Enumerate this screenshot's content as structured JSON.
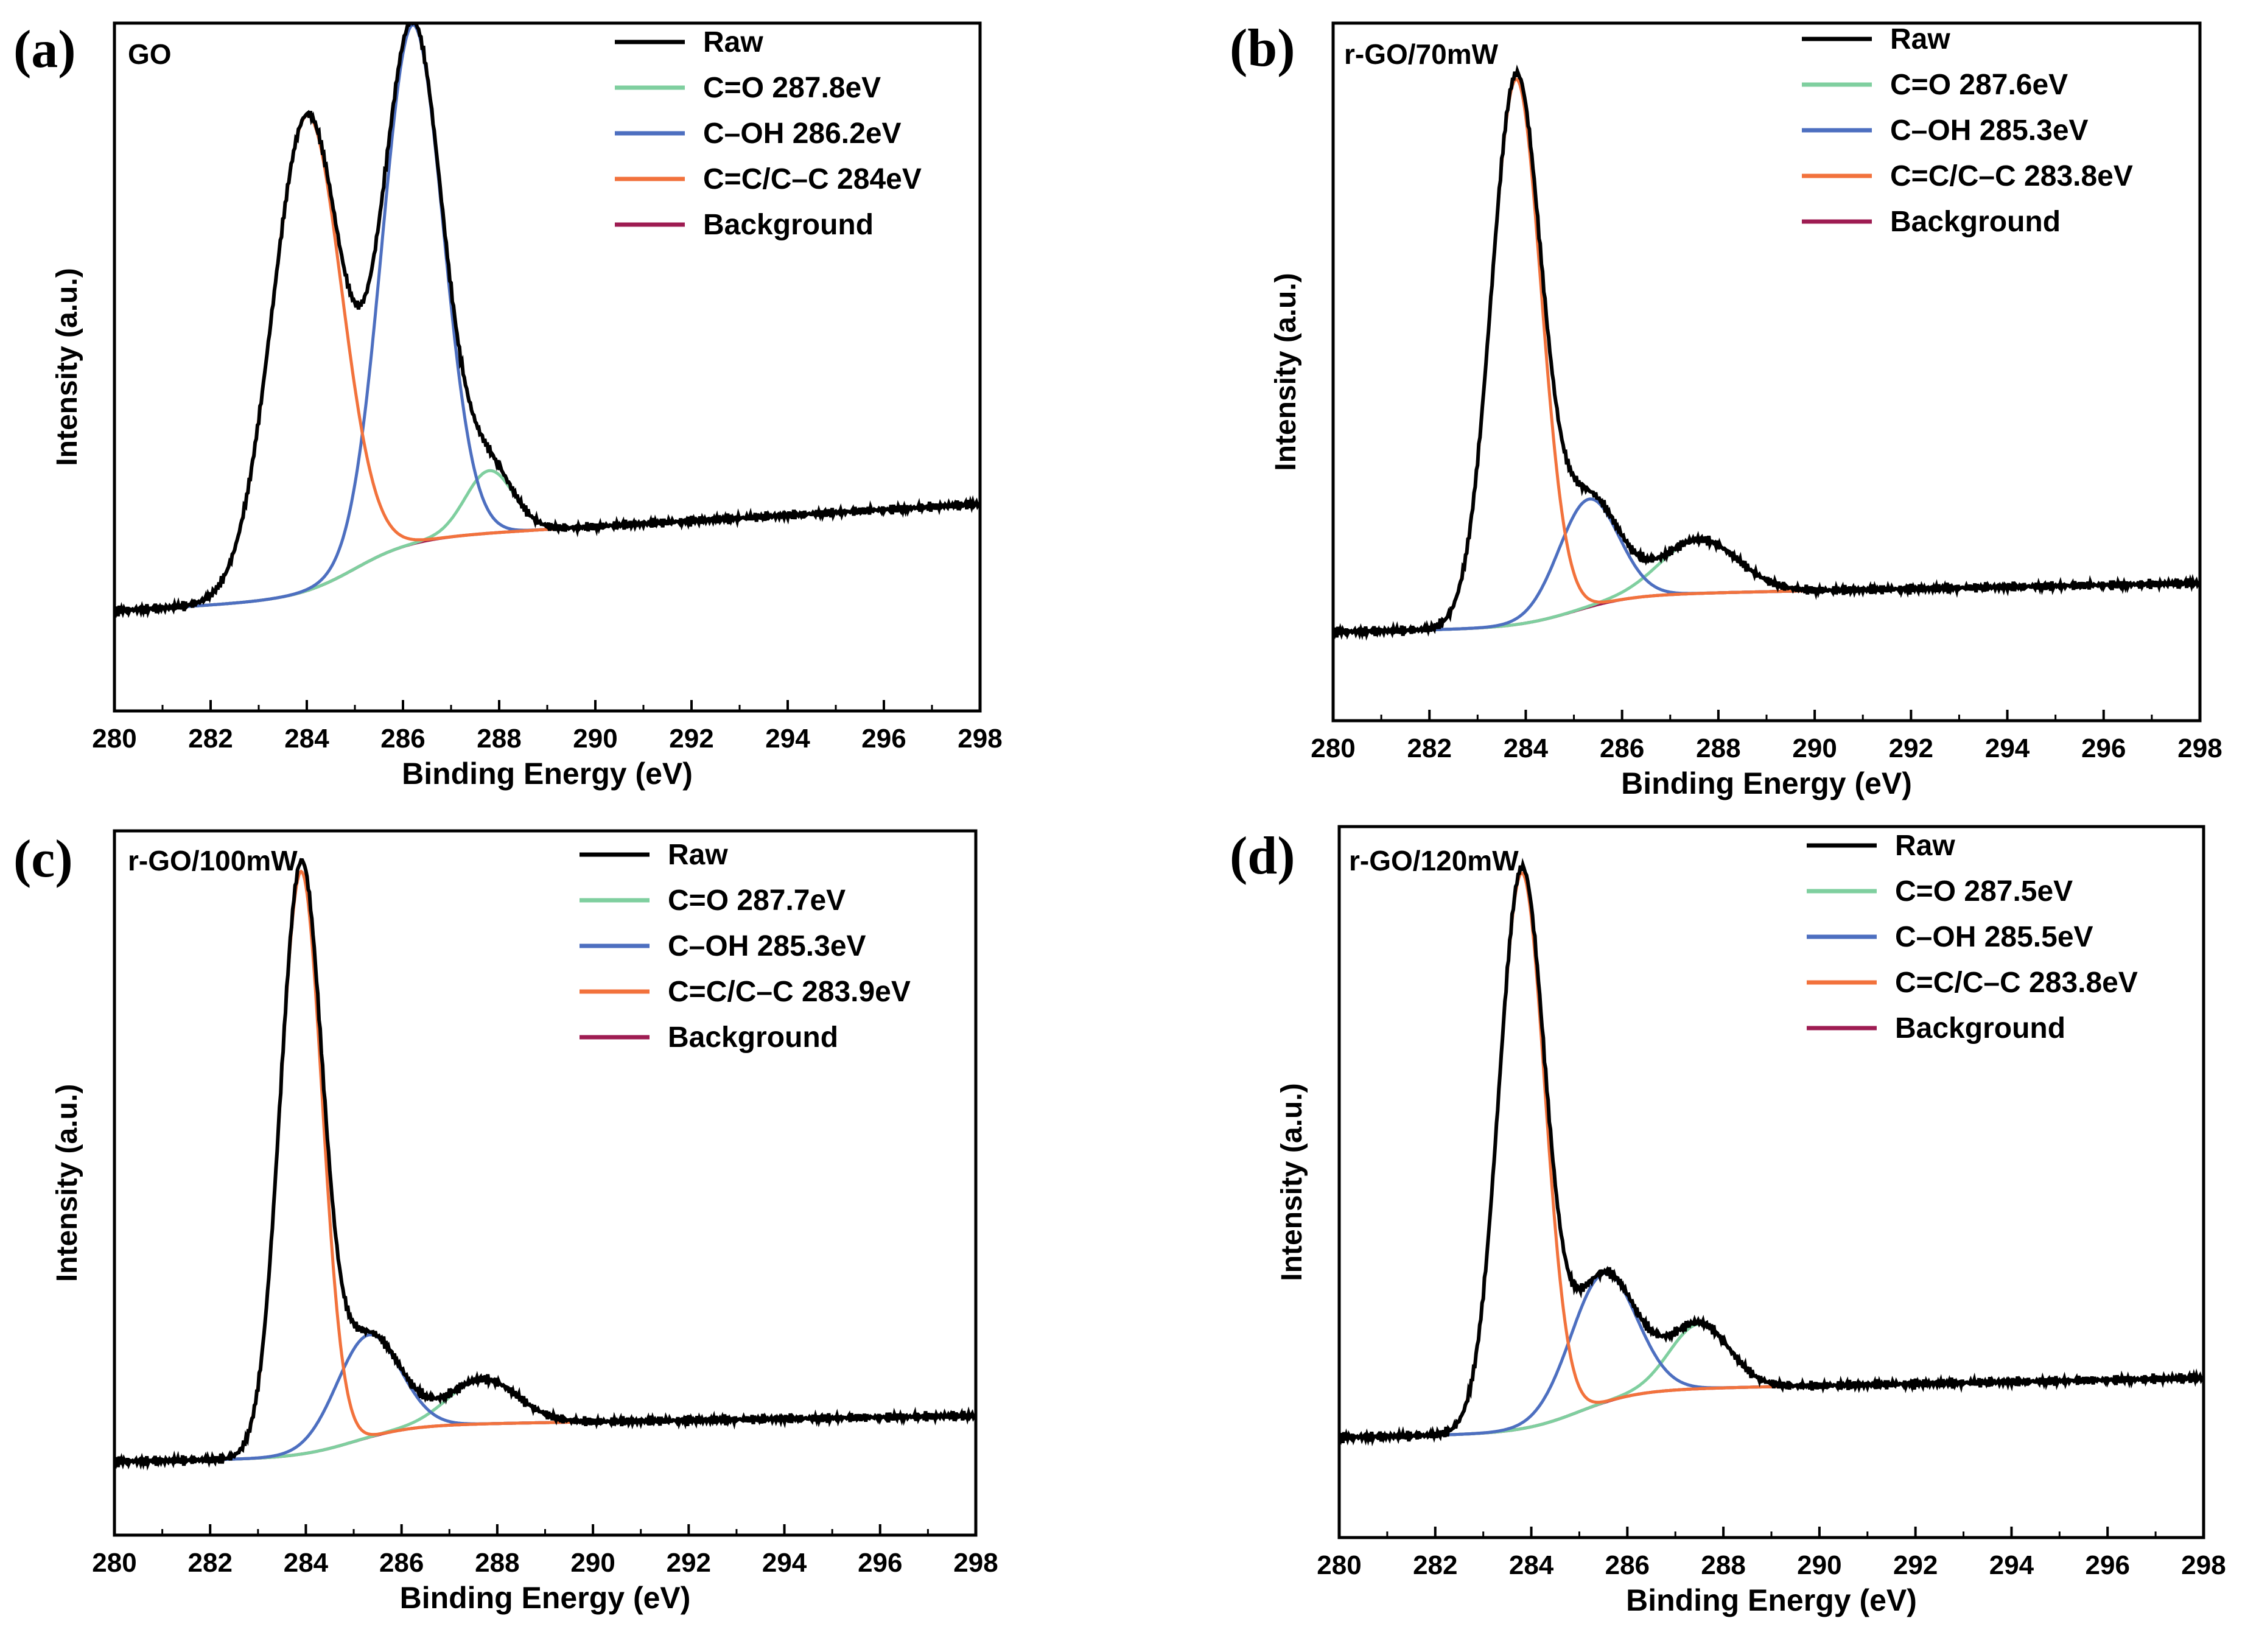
{
  "figure": {
    "colors": {
      "raw": "#000000",
      "c_o": "#7fcf9f",
      "c_oh": "#4d6fc0",
      "cc": "#f2723c",
      "background": "#9e1c52",
      "axis": "#000000"
    }
  },
  "chart_data": [
    {
      "type": "line",
      "panel_label": "(a)",
      "sample": "GO",
      "xlabel": "Binding Energy (eV)",
      "ylabel": "Intensity (a.u.)",
      "xlim": [
        280,
        298
      ],
      "ylim": [
        -0.05,
        1.05
      ],
      "xticks": [
        "280",
        "282",
        "284",
        "286",
        "288",
        "290",
        "292",
        "294",
        "296",
        "298"
      ],
      "legend": [
        "Raw",
        "C=O 287.8eV",
        "C–OH 286.2eV",
        "C=C/C–C 284eV",
        "Background"
      ],
      "background": {
        "start": 0.11,
        "end": 0.2,
        "center": 285.0,
        "width": 0.6,
        "slope": 0.0045
      },
      "peaks": [
        {
          "name": "C=C/C–C",
          "center": 284.0,
          "height": 0.76,
          "sigma": 0.72
        },
        {
          "name": "C–OH",
          "center": 286.2,
          "height": 0.83,
          "sigma": 0.63
        },
        {
          "name": "C=O",
          "center": 287.8,
          "height": 0.1,
          "sigma": 0.5
        }
      ]
    },
    {
      "type": "line",
      "panel_label": "(b)",
      "sample": "r-GO/70mW",
      "xlabel": "Binding Energy (eV)",
      "ylabel": "Intensity (a.u.)",
      "xlim": [
        280,
        298
      ],
      "ylim": [
        -0.05,
        1.05
      ],
      "xticks": [
        "280",
        "282",
        "284",
        "286",
        "288",
        "290",
        "292",
        "294",
        "296",
        "298"
      ],
      "legend": [
        "Raw",
        "C=O 287.6eV",
        "C–OH 285.3eV",
        "C=C/C–C 283.8eV",
        "Background"
      ],
      "background": {
        "start": 0.09,
        "end": 0.14,
        "center": 285.0,
        "width": 0.6,
        "slope": 0.0015
      },
      "peaks": [
        {
          "name": "C=C/C–C",
          "center": 283.8,
          "height": 0.86,
          "sigma": 0.52
        },
        {
          "name": "C–OH",
          "center": 285.3,
          "height": 0.17,
          "sigma": 0.62
        },
        {
          "name": "C=O",
          "center": 287.6,
          "height": 0.085,
          "sigma": 0.8
        }
      ]
    },
    {
      "type": "line",
      "panel_label": "(c)",
      "sample": "r-GO/100mW",
      "xlabel": "Binding Energy (eV)",
      "ylabel": "Intensity (a.u.)",
      "xlim": [
        280,
        298
      ],
      "ylim": [
        -0.05,
        1.05
      ],
      "xticks": [
        "280",
        "282",
        "284",
        "286",
        "288",
        "290",
        "292",
        "294",
        "296",
        "298"
      ],
      "legend": [
        "Raw",
        "C=O 287.7eV",
        "C–OH 285.3eV",
        "C=C/C–C 283.9eV",
        "Background"
      ],
      "background": {
        "start": 0.065,
        "end": 0.115,
        "center": 285.0,
        "width": 0.6,
        "slope": 0.0012
      },
      "peaks": [
        {
          "name": "C=C/C–C",
          "center": 283.9,
          "height": 0.91,
          "sigma": 0.44
        },
        {
          "name": "C–OH",
          "center": 285.3,
          "height": 0.16,
          "sigma": 0.66
        },
        {
          "name": "C=O",
          "center": 287.7,
          "height": 0.07,
          "sigma": 0.72
        }
      ]
    },
    {
      "type": "line",
      "panel_label": "(d)",
      "sample": "r-GO/120mW",
      "xlabel": "Binding Energy (eV)",
      "ylabel": "Intensity (a.u.)",
      "xlim": [
        280,
        298
      ],
      "ylim": [
        -0.05,
        1.05
      ],
      "xticks": [
        "280",
        "282",
        "284",
        "286",
        "288",
        "290",
        "292",
        "294",
        "296",
        "298"
      ],
      "legend": [
        "Raw",
        "C=O 287.5eV",
        "C–OH 285.5eV",
        "C=C/C–C 283.8eV",
        "Background"
      ],
      "background": {
        "start": 0.105,
        "end": 0.17,
        "center": 285.0,
        "width": 0.6,
        "slope": 0.0015
      },
      "peaks": [
        {
          "name": "C=C/C–C",
          "center": 283.8,
          "height": 0.86,
          "sigma": 0.48
        },
        {
          "name": "C–OH",
          "center": 285.5,
          "height": 0.2,
          "sigma": 0.68
        },
        {
          "name": "C=O",
          "center": 287.5,
          "height": 0.1,
          "sigma": 0.62
        }
      ]
    }
  ]
}
